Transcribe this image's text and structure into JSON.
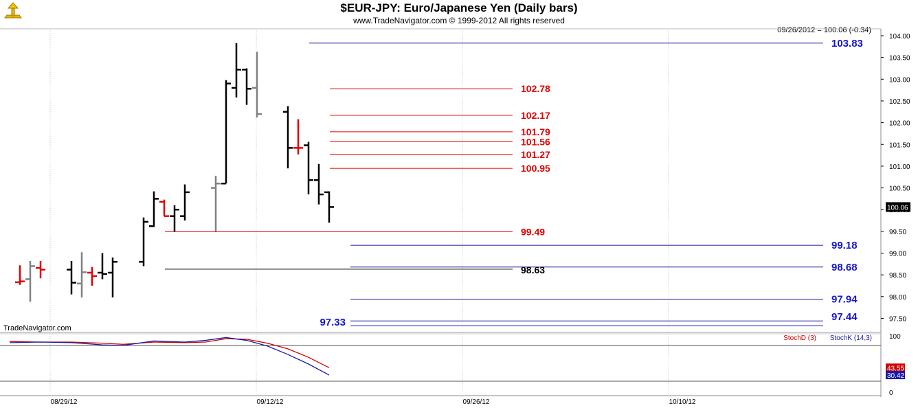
{
  "header": {
    "title": "$EUR-JPY:  Euro/Japanese Yen  (Daily bars)",
    "copyright": "www.TradeNavigator.com © 1999-2012 All rights reserved",
    "last_quote": "09/26/2012 = 100.06 (-0.34)",
    "watermark": "TradeNavigator.com"
  },
  "chart_data": [
    {
      "type": "ohlc",
      "title": "$EUR-JPY:  Euro/Japanese Yen  (Daily bars)",
      "ylim": [
        97.0,
        104.25
      ],
      "y_ticks": [
        "104.00",
        "103.50",
        "103.00",
        "102.50",
        "102.00",
        "101.50",
        "101.00",
        "100.50",
        "100.00",
        "99.50",
        "99.00",
        "98.50",
        "98.00",
        "97.50"
      ],
      "x_ticks": [
        "08/29/12",
        "09/12/12",
        "09/26/12",
        "10/10/12"
      ],
      "last_price_tag": "100.06",
      "bars": [
        {
          "day": 1,
          "open": 98.33,
          "high": 98.72,
          "low": 98.27,
          "close": 98.35,
          "color": "red"
        },
        {
          "day": 2,
          "open": 98.4,
          "high": 98.82,
          "low": 97.88,
          "close": 98.7,
          "color": "gray"
        },
        {
          "day": 3,
          "open": 98.66,
          "high": 98.82,
          "low": 98.42,
          "close": 98.62,
          "color": "red"
        },
        {
          "day": 6,
          "open": 98.62,
          "high": 98.82,
          "low": 98.05,
          "close": 98.32,
          "color": "black"
        },
        {
          "day": 7,
          "open": 98.3,
          "high": 99.02,
          "low": 97.98,
          "close": 98.56,
          "color": "gray"
        },
        {
          "day": 8,
          "open": 98.55,
          "high": 98.68,
          "low": 98.25,
          "close": 98.47,
          "color": "red"
        },
        {
          "day": 9,
          "open": 98.55,
          "high": 99.0,
          "low": 98.4,
          "close": 98.52,
          "color": "black"
        },
        {
          "day": 10,
          "open": 98.55,
          "high": 98.9,
          "low": 97.98,
          "close": 98.8,
          "color": "black"
        },
        {
          "day": 13,
          "open": 98.8,
          "high": 99.82,
          "low": 98.7,
          "close": 99.72,
          "color": "black"
        },
        {
          "day": 14,
          "open": 99.62,
          "high": 100.42,
          "low": 99.6,
          "close": 100.25,
          "color": "black"
        },
        {
          "day": 15,
          "open": 100.18,
          "high": 100.23,
          "low": 99.85,
          "close": 99.85,
          "color": "red"
        },
        {
          "day": 16,
          "open": 99.85,
          "high": 100.1,
          "low": 99.5,
          "close": 100.0,
          "color": "black"
        },
        {
          "day": 17,
          "open": 99.85,
          "high": 100.58,
          "low": 99.75,
          "close": 100.4,
          "color": "black"
        },
        {
          "day": 20,
          "open": 100.5,
          "high": 100.78,
          "low": 99.5,
          "close": 100.6,
          "color": "gray"
        },
        {
          "day": 21,
          "open": 100.6,
          "high": 102.98,
          "low": 100.6,
          "close": 102.9,
          "color": "black"
        },
        {
          "day": 22,
          "open": 102.8,
          "high": 103.83,
          "low": 102.58,
          "close": 103.22,
          "color": "black"
        },
        {
          "day": 23,
          "open": 103.22,
          "high": 103.25,
          "low": 102.41,
          "close": 102.78,
          "color": "black"
        },
        {
          "day": 24,
          "open": 102.8,
          "high": 103.63,
          "low": 102.12,
          "close": 102.2,
          "color": "gray"
        },
        {
          "day": 27,
          "open": 102.25,
          "high": 102.38,
          "low": 100.95,
          "close": 101.42,
          "color": "black"
        },
        {
          "day": 28,
          "open": 101.42,
          "high": 102.08,
          "low": 101.27,
          "close": 101.42,
          "color": "red"
        },
        {
          "day": 29,
          "open": 101.48,
          "high": 101.56,
          "low": 100.35,
          "close": 100.68,
          "color": "black"
        },
        {
          "day": 30,
          "open": 100.68,
          "high": 101.05,
          "low": 100.12,
          "close": 100.35,
          "color": "black"
        },
        {
          "day": 31,
          "open": 100.4,
          "high": 100.42,
          "low": 99.7,
          "close": 100.06,
          "color": "black"
        }
      ],
      "levels": [
        {
          "value": 103.83,
          "label": "103.83",
          "color": "blue"
        },
        {
          "value": 102.78,
          "label": "102.78",
          "color": "red"
        },
        {
          "value": 102.17,
          "label": "102.17",
          "color": "red"
        },
        {
          "value": 101.79,
          "label": "101.79",
          "color": "red"
        },
        {
          "value": 101.56,
          "label": "101.56",
          "color": "red"
        },
        {
          "value": 101.27,
          "label": "101.27",
          "color": "red"
        },
        {
          "value": 100.95,
          "label": "100.95",
          "color": "red"
        },
        {
          "value": 99.49,
          "label": "99.49",
          "color": "red"
        },
        {
          "value": 99.18,
          "label": "99.18",
          "color": "blue"
        },
        {
          "value": 98.68,
          "label": "98.68",
          "color": "blue"
        },
        {
          "value": 98.63,
          "label": "98.63",
          "color": "black"
        },
        {
          "value": 97.94,
          "label": "97.94",
          "color": "blue"
        },
        {
          "value": 97.44,
          "label": "97.44",
          "color": "blue"
        },
        {
          "value": 97.33,
          "label": "97.33",
          "color": "blue"
        }
      ]
    },
    {
      "type": "line",
      "ylim": [
        0,
        100
      ],
      "y_ticks": [
        "100",
        "0"
      ],
      "series": [
        {
          "name": "StochD (3)",
          "color": "#d00000",
          "values": [
            [
              0,
              90
            ],
            [
              3,
              89
            ],
            [
              6,
              89
            ],
            [
              9,
              87
            ],
            [
              11,
              85
            ],
            [
              14,
              89
            ],
            [
              17,
              88
            ],
            [
              19,
              89
            ],
            [
              21,
              95
            ],
            [
              23,
              94
            ],
            [
              25,
              87
            ],
            [
              27,
              77
            ],
            [
              29,
              62
            ],
            [
              31,
              43.55
            ]
          ]
        },
        {
          "name": "StochK (14,3)",
          "color": "#1a1aa8",
          "values": [
            [
              0,
              88
            ],
            [
              3,
              89
            ],
            [
              6,
              88
            ],
            [
              9,
              84
            ],
            [
              11,
              83
            ],
            [
              14,
              91
            ],
            [
              17,
              89
            ],
            [
              19,
              92
            ],
            [
              21,
              97
            ],
            [
              23,
              92
            ],
            [
              25,
              82
            ],
            [
              27,
              67
            ],
            [
              29,
              50
            ],
            [
              31,
              30.42
            ]
          ]
        }
      ],
      "last_value_tags": [
        "43.55",
        "30.42"
      ]
    }
  ]
}
